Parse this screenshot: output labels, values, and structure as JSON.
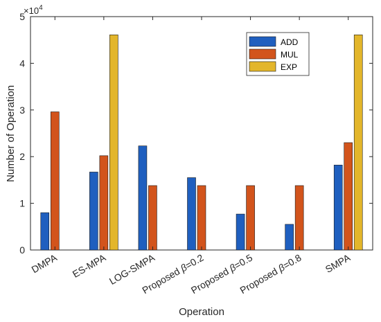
{
  "chart_data": {
    "type": "bar",
    "title": "",
    "xlabel": "Operation",
    "ylabel": "Number of Operation",
    "y_exponent_label": "×10",
    "y_exponent_power": "4",
    "ylim": [
      0,
      5
    ],
    "yticks": [
      "0",
      "1",
      "2",
      "3",
      "4",
      "5"
    ],
    "categories": [
      "DMPA",
      "ES-MPA",
      "LOG-SMPA",
      "Proposed β=0.2",
      "Proposed β=0.5",
      "Proposed β=0.8",
      "SMPA"
    ],
    "category_prefix": [
      "",
      "",
      "",
      "Proposed ",
      "Proposed ",
      "Proposed ",
      ""
    ],
    "category_beta": [
      "",
      "",
      "",
      "β",
      "β",
      "β",
      ""
    ],
    "category_suffix": [
      "DMPA",
      "ES-MPA",
      "LOG-SMPA",
      "=0.2",
      "=0.5",
      "=0.8",
      "SMPA"
    ],
    "series": [
      {
        "name": "ADD",
        "color": "#1f5fbf",
        "values": [
          0.8,
          1.67,
          2.23,
          1.55,
          0.77,
          0.55,
          1.82
        ]
      },
      {
        "name": "MUL",
        "color": "#d2541c",
        "values": [
          2.96,
          2.02,
          1.38,
          1.38,
          1.38,
          1.38,
          2.3
        ]
      },
      {
        "name": "EXP",
        "color": "#e3b62b",
        "values": [
          0,
          4.61,
          0,
          0,
          0,
          0,
          4.61
        ]
      }
    ],
    "legend_position": "top-right",
    "grid": false
  }
}
